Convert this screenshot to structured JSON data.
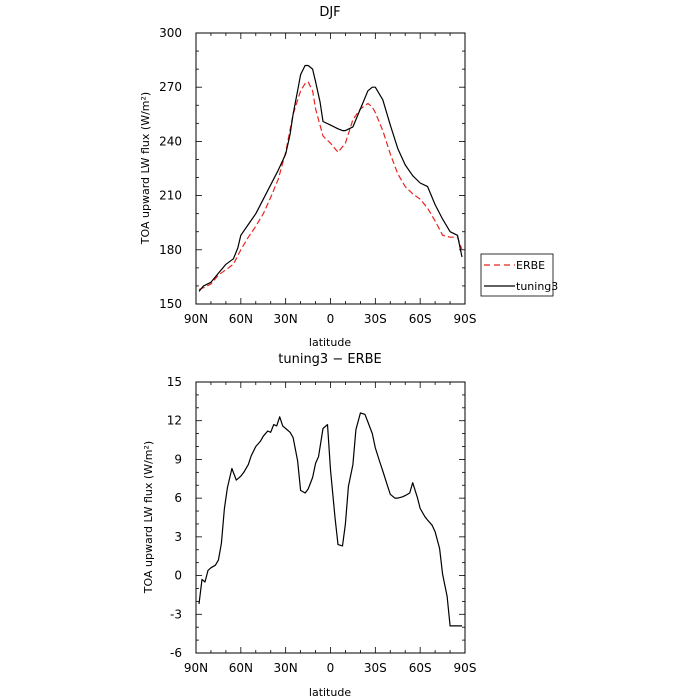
{
  "chart_data": [
    {
      "type": "line",
      "title": "DJF",
      "xlabel": "latitude",
      "ylabel": "TOA upward LW flux (W/m²)",
      "xlim": [
        -90,
        90
      ],
      "ylim": [
        150,
        300
      ],
      "xticks": [
        {
          "value": -90,
          "label": "90N"
        },
        {
          "value": -60,
          "label": "60N"
        },
        {
          "value": -30,
          "label": "30N"
        },
        {
          "value": 0,
          "label": "0"
        },
        {
          "value": 30,
          "label": "30S"
        },
        {
          "value": 60,
          "label": "60S"
        },
        {
          "value": 90,
          "label": "90S"
        }
      ],
      "yticks": [
        150,
        180,
        210,
        240,
        270,
        300
      ],
      "grid": false,
      "legend": "right",
      "series": [
        {
          "name": "ERBE",
          "color": "#e8251f",
          "dash": "dashed",
          "x": [
            -88,
            -85,
            -80,
            -75,
            -70,
            -65,
            -60,
            -55,
            -50,
            -45,
            -40,
            -35,
            -30,
            -25,
            -20,
            -17,
            -15,
            -12,
            -10,
            -5,
            0,
            3,
            5,
            10,
            15,
            20,
            25,
            28,
            30,
            35,
            40,
            45,
            50,
            55,
            60,
            65,
            70,
            75,
            80,
            85,
            88
          ],
          "y": [
            158,
            159,
            161,
            166,
            169,
            172,
            180,
            187,
            193,
            200,
            209,
            219,
            234,
            255,
            268,
            272,
            273,
            268,
            258,
            243,
            239,
            236,
            234,
            239,
            252,
            258,
            261,
            259,
            256,
            246,
            233,
            222,
            215,
            211,
            208,
            203,
            196,
            188,
            187,
            187,
            180
          ]
        },
        {
          "name": "tuning3",
          "color": "#000000",
          "dash": "solid",
          "x": [
            -88,
            -85,
            -80,
            -75,
            -70,
            -65,
            -62,
            -60,
            -55,
            -50,
            -45,
            -40,
            -35,
            -30,
            -27,
            -25,
            -22,
            -20,
            -17,
            -15,
            -12,
            -10,
            -7,
            -5,
            0,
            5,
            8,
            10,
            15,
            20,
            25,
            28,
            30,
            35,
            40,
            45,
            50,
            55,
            60,
            65,
            70,
            75,
            80,
            85,
            88
          ],
          "y": [
            157,
            160,
            162,
            167,
            172,
            175,
            181,
            188,
            194,
            200,
            208,
            216,
            224,
            233,
            244,
            255,
            268,
            277,
            282,
            282,
            280,
            273,
            262,
            251,
            249,
            247,
            246,
            246,
            248,
            258,
            268,
            270,
            270,
            263,
            249,
            236,
            227,
            221,
            217,
            215,
            205,
            197,
            190,
            188,
            176
          ]
        }
      ]
    },
    {
      "type": "line",
      "title": "tuning3 − ERBE",
      "xlabel": "latitude",
      "ylabel": "TOA upward LW flux (W/m²)",
      "xlim": [
        -90,
        90
      ],
      "ylim": [
        -6,
        15
      ],
      "xticks": [
        {
          "value": -90,
          "label": "90N"
        },
        {
          "value": -60,
          "label": "60N"
        },
        {
          "value": -30,
          "label": "30N"
        },
        {
          "value": 0,
          "label": "0"
        },
        {
          "value": 30,
          "label": "30S"
        },
        {
          "value": 60,
          "label": "60S"
        },
        {
          "value": 90,
          "label": "90S"
        }
      ],
      "yticks": [
        -6,
        -3,
        0,
        3,
        6,
        9,
        12,
        15
      ],
      "grid": false,
      "series": [
        {
          "color": "#000000",
          "dash": "solid",
          "x": [
            -88,
            -86,
            -84,
            -82,
            -80,
            -77,
            -75,
            -73,
            -71,
            -69,
            -66,
            -63,
            -60,
            -58,
            -55,
            -53,
            -50,
            -47,
            -45,
            -42,
            -40,
            -38,
            -36,
            -34,
            -32,
            -30,
            -27,
            -25,
            -22,
            -20,
            -17,
            -15,
            -12,
            -10,
            -8,
            -5,
            -2,
            0,
            3,
            5,
            8,
            10,
            12,
            15,
            17,
            20,
            23,
            25,
            28,
            30,
            33,
            35,
            38,
            40,
            43,
            45,
            48,
            50,
            53,
            55,
            58,
            60,
            63,
            65,
            68,
            70,
            73,
            75,
            78,
            80,
            83,
            85,
            88
          ],
          "y": [
            -2.2,
            -0.3,
            -0.5,
            0.4,
            0.6,
            0.8,
            1.2,
            2.5,
            5.2,
            6.8,
            8.3,
            7.4,
            7.7,
            8.0,
            8.6,
            9.3,
            10.0,
            10.4,
            10.8,
            11.2,
            11.1,
            11.7,
            11.6,
            12.3,
            11.6,
            11.4,
            11.1,
            10.7,
            8.9,
            6.6,
            6.4,
            6.7,
            7.6,
            8.7,
            9.2,
            11.4,
            11.7,
            8.2,
            4.5,
            2.4,
            2.3,
            4.0,
            6.9,
            8.6,
            11.3,
            12.6,
            12.5,
            11.9,
            11.0,
            9.9,
            8.8,
            8.1,
            7.0,
            6.3,
            6.0,
            6.0,
            6.1,
            6.2,
            6.4,
            7.2,
            6.1,
            5.2,
            4.6,
            4.3,
            3.9,
            3.4,
            2.1,
            0.1,
            -1.6,
            -3.9,
            -3.9,
            -3.9,
            -3.9
          ]
        }
      ]
    }
  ]
}
